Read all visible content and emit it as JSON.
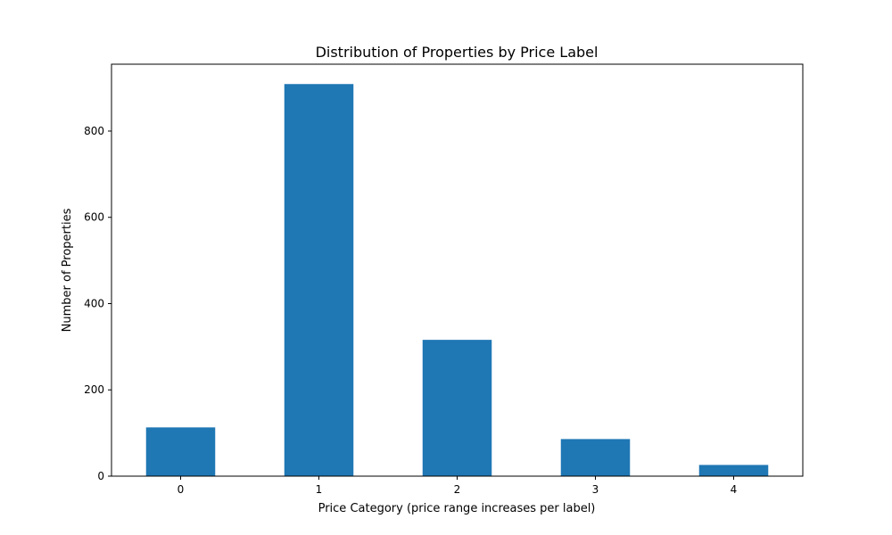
{
  "chart_data": {
    "type": "bar",
    "title": "Distribution of Properties by Price Label",
    "xlabel": "Price Category (price range increases per label)",
    "ylabel": "Number of Properties",
    "categories": [
      "0",
      "1",
      "2",
      "3",
      "4"
    ],
    "values": [
      113,
      909,
      316,
      86,
      26
    ],
    "ylim": [
      0,
      955
    ],
    "yticks": [
      0,
      200,
      400,
      600,
      800
    ],
    "grid": false,
    "legend": "none",
    "bar_color": "#1f77b4"
  }
}
